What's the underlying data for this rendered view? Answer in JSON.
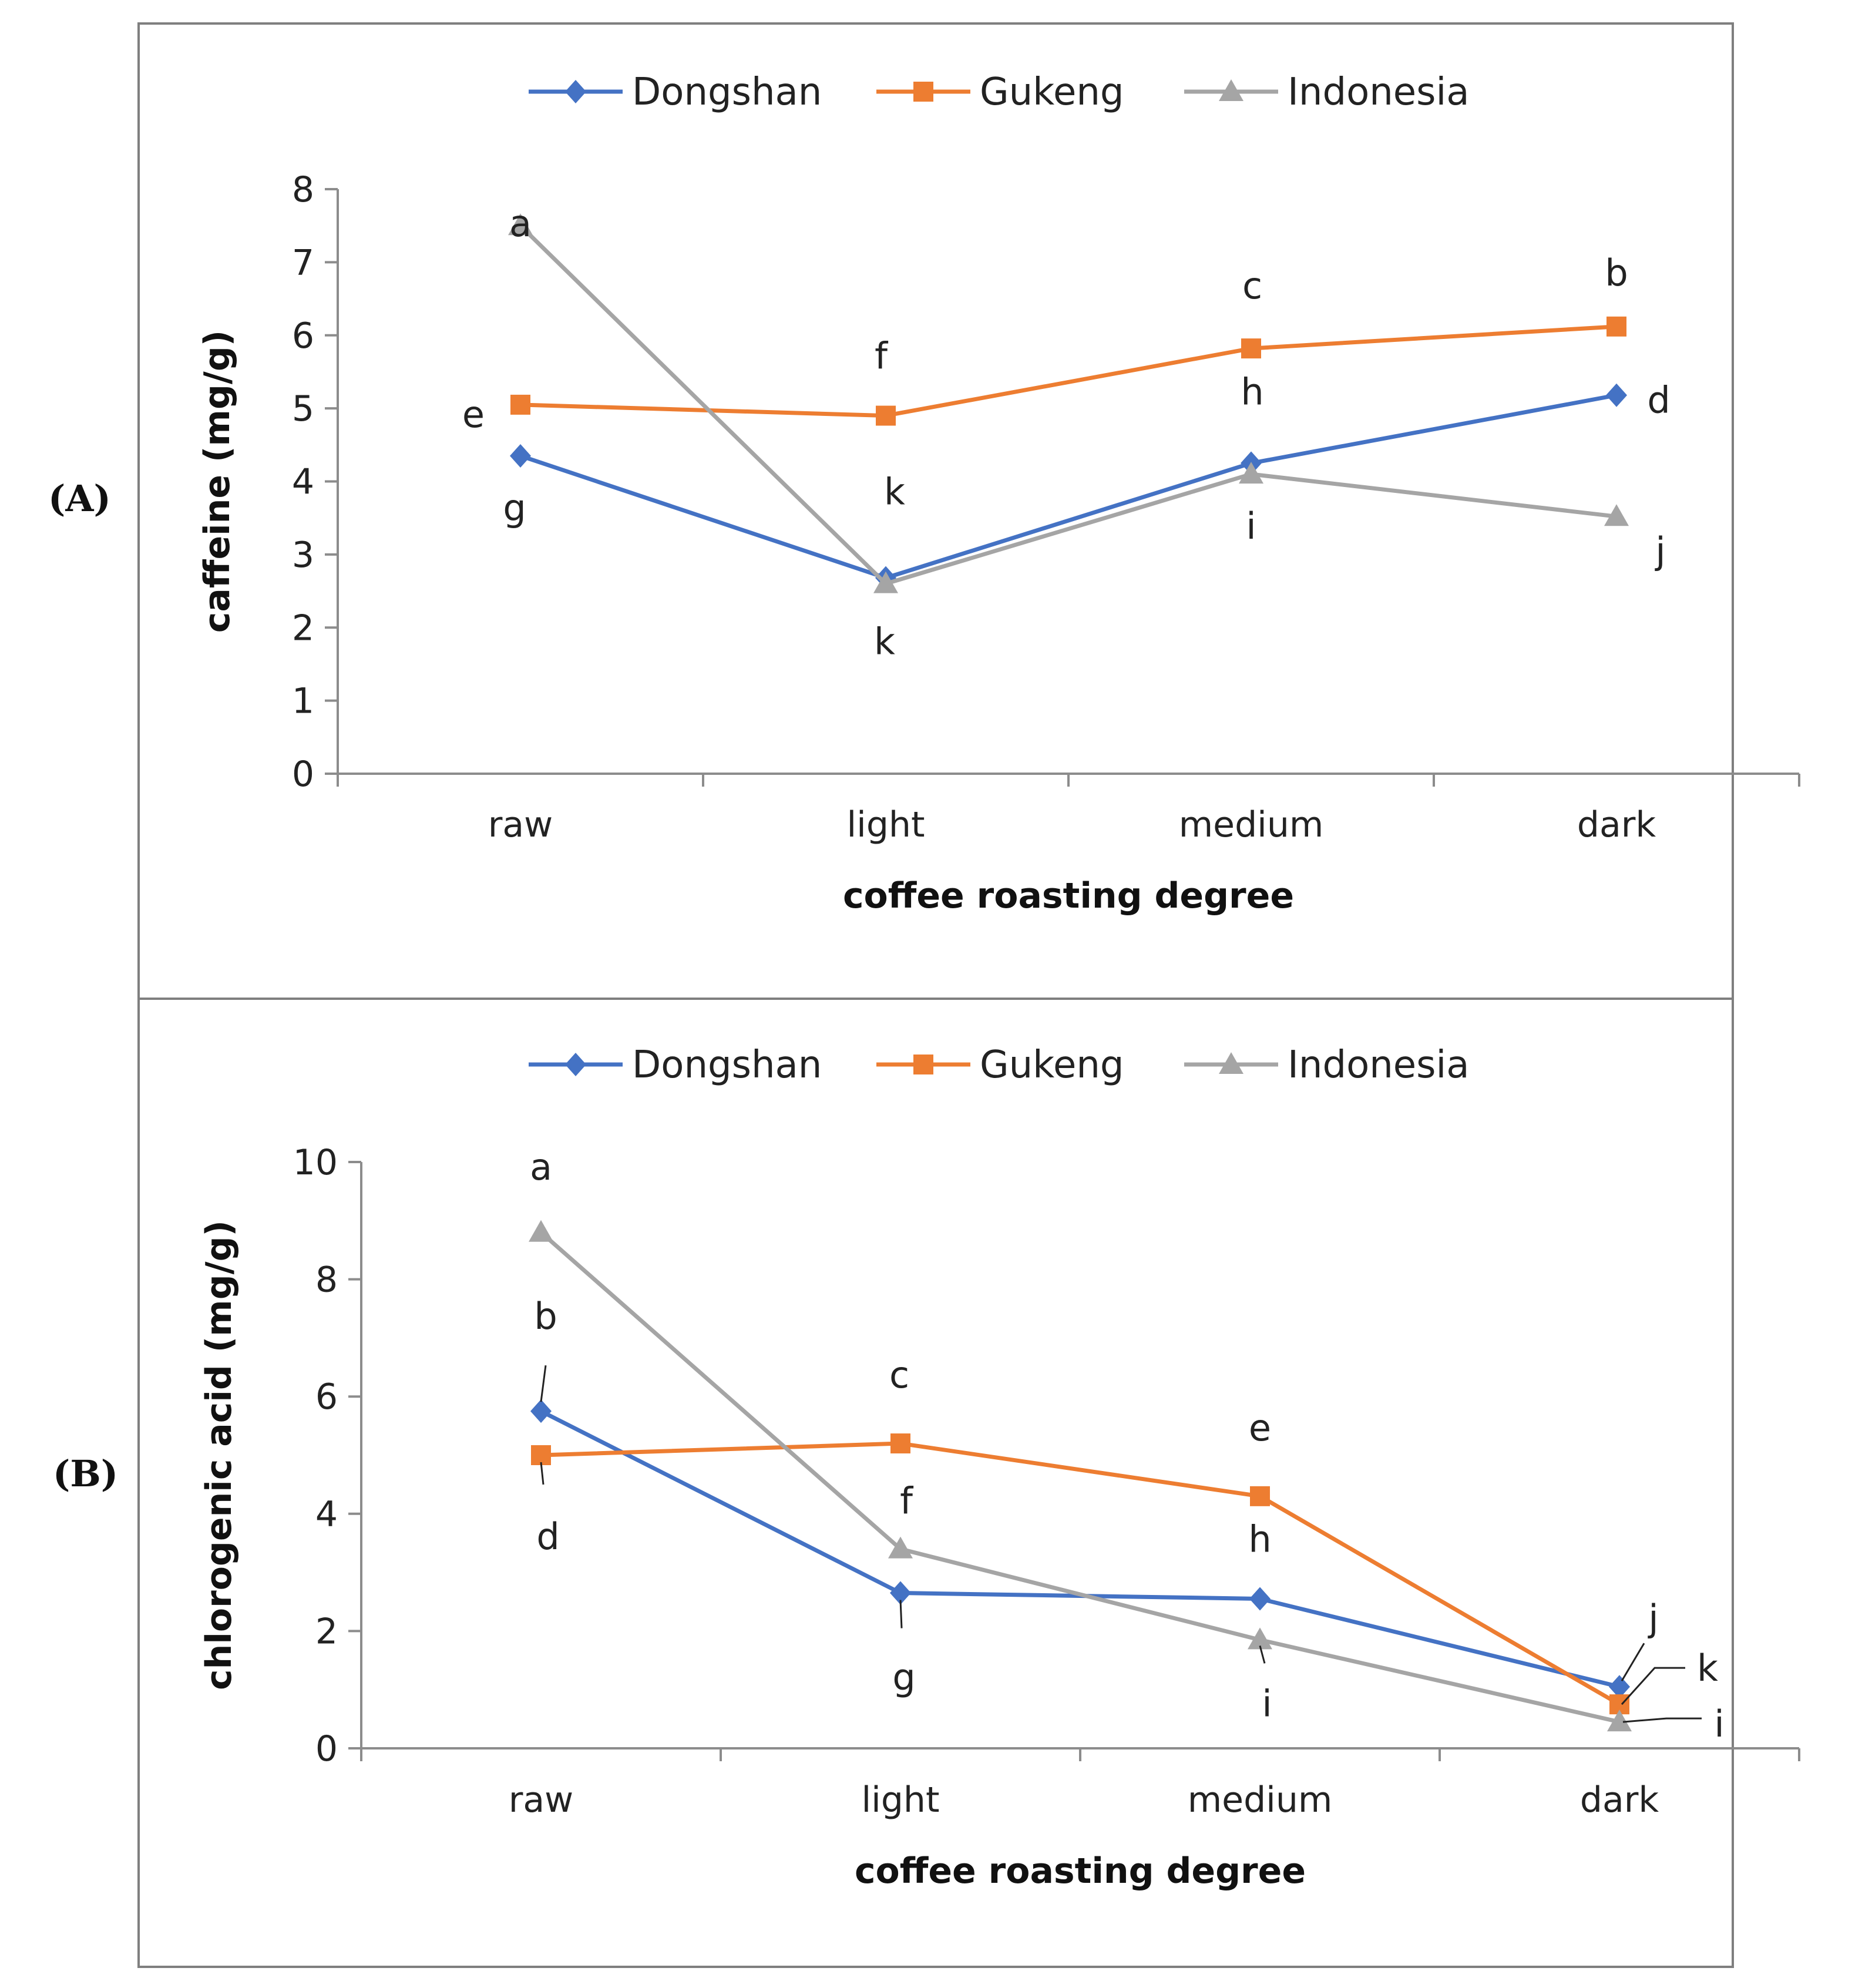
{
  "colors": {
    "Dongshan": "#4472C4",
    "Gukeng": "#ED7D31",
    "Indonesia": "#A5A5A5"
  },
  "chart_data": [
    {
      "type": "line",
      "panel_label": "(A)",
      "legend": [
        "Dongshan",
        "Gukeng",
        "Indonesia"
      ],
      "legend_position": "top-center",
      "categories": [
        "raw",
        "light",
        "medium",
        "dark"
      ],
      "xlabel": "coffee roasting degree",
      "ylabel": "caffeine (mg/g)",
      "ylim": [
        0,
        8
      ],
      "yticks": [
        "0",
        "1",
        "2",
        "3",
        "4",
        "5",
        "6",
        "7",
        "8"
      ],
      "grid": false,
      "series": [
        {
          "name": "Dongshan",
          "marker": "diamond",
          "values": [
            4.35,
            2.68,
            4.25,
            5.18
          ]
        },
        {
          "name": "Gukeng",
          "marker": "square",
          "values": [
            5.05,
            4.9,
            5.82,
            6.12
          ]
        },
        {
          "name": "Indonesia",
          "marker": "triangle",
          "values": [
            7.5,
            2.6,
            4.1,
            3.52
          ]
        }
      ],
      "annotations": [
        {
          "text": "a",
          "series": "Indonesia",
          "category": "raw"
        },
        {
          "text": "e",
          "series": "Gukeng",
          "category": "raw"
        },
        {
          "text": "g",
          "series": "Dongshan",
          "category": "raw"
        },
        {
          "text": "f",
          "series": "Gukeng",
          "category": "light"
        },
        {
          "text": "k",
          "series": "Dongshan",
          "category": "light"
        },
        {
          "text": "k",
          "series": "Indonesia",
          "category": "light"
        },
        {
          "text": "c",
          "series": "Gukeng",
          "category": "medium"
        },
        {
          "text": "h",
          "series": "Dongshan",
          "category": "medium"
        },
        {
          "text": "i",
          "series": "Indonesia",
          "category": "medium"
        },
        {
          "text": "b",
          "series": "Gukeng",
          "category": "dark"
        },
        {
          "text": "d",
          "series": "Dongshan",
          "category": "dark"
        },
        {
          "text": "j",
          "series": "Indonesia",
          "category": "dark"
        }
      ]
    },
    {
      "type": "line",
      "panel_label": "(B)",
      "legend": [
        "Dongshan",
        "Gukeng",
        "Indonesia"
      ],
      "legend_position": "top-center",
      "categories": [
        "raw",
        "light",
        "medium",
        "dark"
      ],
      "xlabel": "coffee roasting degree",
      "ylabel": "chlorogenic acid (mg/g)",
      "ylim": [
        0,
        10
      ],
      "yticks": [
        "0",
        "2",
        "4",
        "6",
        "8",
        "10"
      ],
      "grid": false,
      "series": [
        {
          "name": "Dongshan",
          "marker": "diamond",
          "values": [
            5.75,
            2.65,
            2.55,
            1.05
          ]
        },
        {
          "name": "Gukeng",
          "marker": "square",
          "values": [
            5.0,
            5.2,
            4.3,
            0.75
          ]
        },
        {
          "name": "Indonesia",
          "marker": "triangle",
          "values": [
            8.8,
            3.4,
            1.85,
            0.45
          ]
        }
      ],
      "annotations": [
        {
          "text": "a",
          "series": "Indonesia",
          "category": "raw"
        },
        {
          "text": "b",
          "series": "Dongshan",
          "category": "raw"
        },
        {
          "text": "d",
          "series": "Gukeng",
          "category": "raw"
        },
        {
          "text": "c",
          "series": "Gukeng",
          "category": "light"
        },
        {
          "text": "f",
          "series": "Indonesia",
          "category": "light"
        },
        {
          "text": "g",
          "series": "Dongshan",
          "category": "light"
        },
        {
          "text": "e",
          "series": "Gukeng",
          "category": "medium"
        },
        {
          "text": "h",
          "series": "Dongshan",
          "category": "medium"
        },
        {
          "text": "i",
          "series": "Indonesia",
          "category": "medium"
        },
        {
          "text": "j",
          "series": "Dongshan",
          "category": "dark"
        },
        {
          "text": "k",
          "series": "Gukeng",
          "category": "dark"
        },
        {
          "text": "i",
          "series": "Indonesia",
          "category": "dark"
        }
      ]
    }
  ]
}
